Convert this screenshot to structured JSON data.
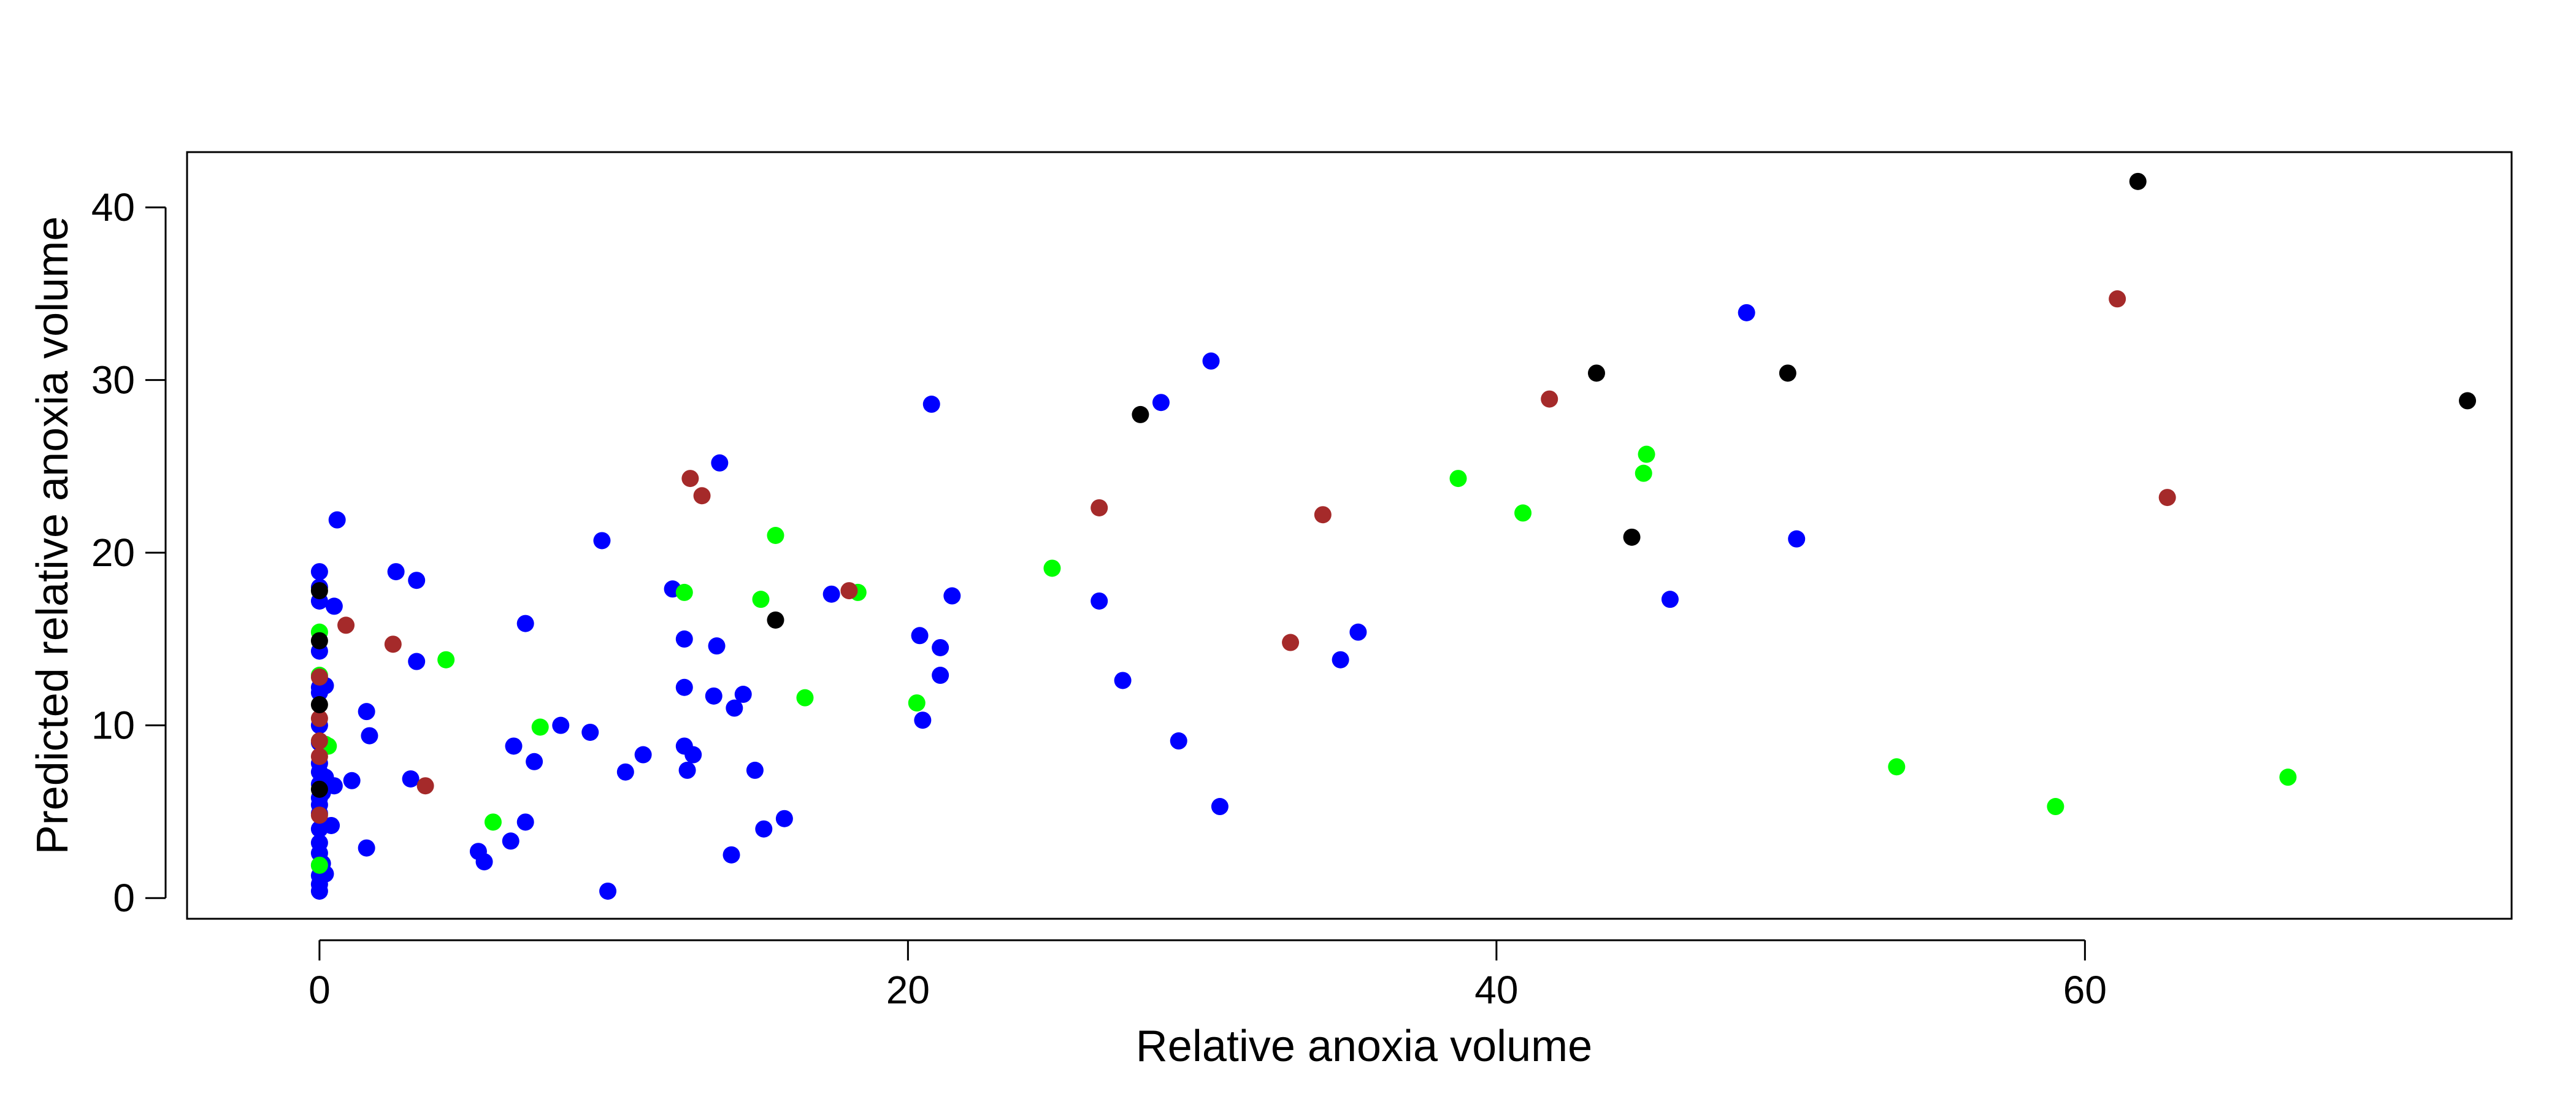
{
  "chart_data": {
    "type": "scatter",
    "title": "",
    "xlabel": "Relative anoxia volume",
    "ylabel": "Predicted relative anoxia volume",
    "xlim": [
      -4.5,
      74.5
    ],
    "ylim": [
      -1.2,
      43.2
    ],
    "xticks": [
      0,
      20,
      40,
      60
    ],
    "yticks": [
      0,
      10,
      20,
      30,
      40
    ],
    "grid": false,
    "legend": "none",
    "colors": {
      "blue": "#0000ff",
      "green": "#00ff00",
      "brown": "#a52a2a",
      "black": "#000000"
    },
    "series": [
      {
        "color": "#0000ff",
        "points": [
          [
            0,
            0.4
          ],
          [
            0,
            0.8
          ],
          [
            0,
            1.3
          ],
          [
            0,
            1.9
          ],
          [
            0,
            2.6
          ],
          [
            0,
            3.2
          ],
          [
            0,
            4.0
          ],
          [
            0,
            4.9
          ],
          [
            0,
            5.4
          ],
          [
            0,
            5.8
          ],
          [
            0,
            6.6
          ],
          [
            0,
            7.3
          ],
          [
            0,
            7.8
          ],
          [
            0,
            9.0
          ],
          [
            0,
            10.0
          ],
          [
            0,
            11.9
          ],
          [
            0,
            12.2
          ],
          [
            0,
            14.3
          ],
          [
            0,
            17.2
          ],
          [
            0,
            18.0
          ],
          [
            0,
            18.9
          ],
          [
            0.1,
            2.0
          ],
          [
            0.1,
            6.1
          ],
          [
            0.2,
            1.4
          ],
          [
            0.2,
            7.0
          ],
          [
            0.2,
            12.3
          ],
          [
            0.4,
            4.2
          ],
          [
            0.5,
            6.5
          ],
          [
            0.5,
            16.9
          ],
          [
            0.6,
            21.9
          ],
          [
            1.1,
            6.8
          ],
          [
            1.6,
            2.9
          ],
          [
            1.6,
            10.8
          ],
          [
            1.7,
            9.4
          ],
          [
            2.6,
            18.9
          ],
          [
            3.1,
            6.9
          ],
          [
            3.3,
            13.7
          ],
          [
            3.3,
            18.4
          ],
          [
            5.4,
            2.7
          ],
          [
            5.6,
            2.1
          ],
          [
            6.5,
            3.3
          ],
          [
            6.6,
            8.8
          ],
          [
            7.0,
            4.4
          ],
          [
            7.0,
            15.9
          ],
          [
            7.3,
            7.9
          ],
          [
            8.2,
            10.0
          ],
          [
            9.2,
            9.6
          ],
          [
            9.6,
            20.7
          ],
          [
            9.8,
            0.4
          ],
          [
            10.4,
            7.3
          ],
          [
            11.0,
            8.3
          ],
          [
            12.0,
            17.9
          ],
          [
            12.4,
            15.0
          ],
          [
            12.4,
            12.2
          ],
          [
            12.4,
            8.8
          ],
          [
            12.5,
            7.4
          ],
          [
            12.7,
            8.3
          ],
          [
            13.4,
            11.7
          ],
          [
            13.5,
            14.6
          ],
          [
            13.6,
            25.2
          ],
          [
            14.0,
            2.5
          ],
          [
            14.1,
            11.0
          ],
          [
            14.4,
            11.8
          ],
          [
            14.8,
            7.4
          ],
          [
            15.1,
            4.0
          ],
          [
            15.8,
            4.6
          ],
          [
            17.4,
            17.6
          ],
          [
            20.4,
            15.2
          ],
          [
            20.5,
            10.3
          ],
          [
            20.8,
            28.6
          ],
          [
            21.1,
            14.5
          ],
          [
            21.1,
            12.9
          ],
          [
            21.5,
            17.5
          ],
          [
            26.5,
            17.2
          ],
          [
            27.3,
            12.6
          ],
          [
            28.6,
            28.7
          ],
          [
            29.2,
            9.1
          ],
          [
            30.3,
            31.1
          ],
          [
            30.6,
            5.3
          ],
          [
            34.7,
            13.8
          ],
          [
            35.3,
            15.4
          ],
          [
            45.9,
            17.3
          ],
          [
            48.5,
            33.9
          ],
          [
            50.2,
            20.8
          ]
        ]
      },
      {
        "color": "#00ff00",
        "points": [
          [
            0,
            1.9
          ],
          [
            0,
            15.4
          ],
          [
            0,
            12.9
          ],
          [
            0.2,
            8.9
          ],
          [
            0.3,
            8.8
          ],
          [
            5.9,
            4.4
          ],
          [
            4.3,
            13.8
          ],
          [
            7.5,
            9.9
          ],
          [
            12.4,
            17.7
          ],
          [
            15.0,
            17.3
          ],
          [
            15.5,
            21.0
          ],
          [
            16.5,
            11.6
          ],
          [
            18.3,
            17.7
          ],
          [
            20.3,
            11.3
          ],
          [
            24.9,
            19.1
          ],
          [
            38.7,
            24.3
          ],
          [
            40.9,
            22.3
          ],
          [
            45.0,
            24.6
          ],
          [
            45.1,
            25.7
          ],
          [
            53.6,
            7.6
          ],
          [
            59.0,
            5.3
          ],
          [
            66.9,
            7.0
          ]
        ]
      },
      {
        "color": "#a52a2a",
        "points": [
          [
            0,
            4.8
          ],
          [
            0,
            8.2
          ],
          [
            0,
            9.1
          ],
          [
            0,
            10.4
          ],
          [
            0,
            12.8
          ],
          [
            0.9,
            15.8
          ],
          [
            2.5,
            14.7
          ],
          [
            3.6,
            6.5
          ],
          [
            12.6,
            24.3
          ],
          [
            13.0,
            23.3
          ],
          [
            18.0,
            17.8
          ],
          [
            26.5,
            22.6
          ],
          [
            33.0,
            14.8
          ],
          [
            34.1,
            22.2
          ],
          [
            41.8,
            28.9
          ],
          [
            61.1,
            34.7
          ],
          [
            62.8,
            23.2
          ]
        ]
      },
      {
        "color": "#000000",
        "points": [
          [
            0,
            6.3
          ],
          [
            0,
            11.2
          ],
          [
            0,
            14.9
          ],
          [
            0,
            17.8
          ],
          [
            15.5,
            16.1
          ],
          [
            27.9,
            28.0
          ],
          [
            43.4,
            30.4
          ],
          [
            44.6,
            20.9
          ],
          [
            49.9,
            30.4
          ],
          [
            61.8,
            41.5
          ],
          [
            73.0,
            28.8
          ]
        ]
      }
    ]
  }
}
